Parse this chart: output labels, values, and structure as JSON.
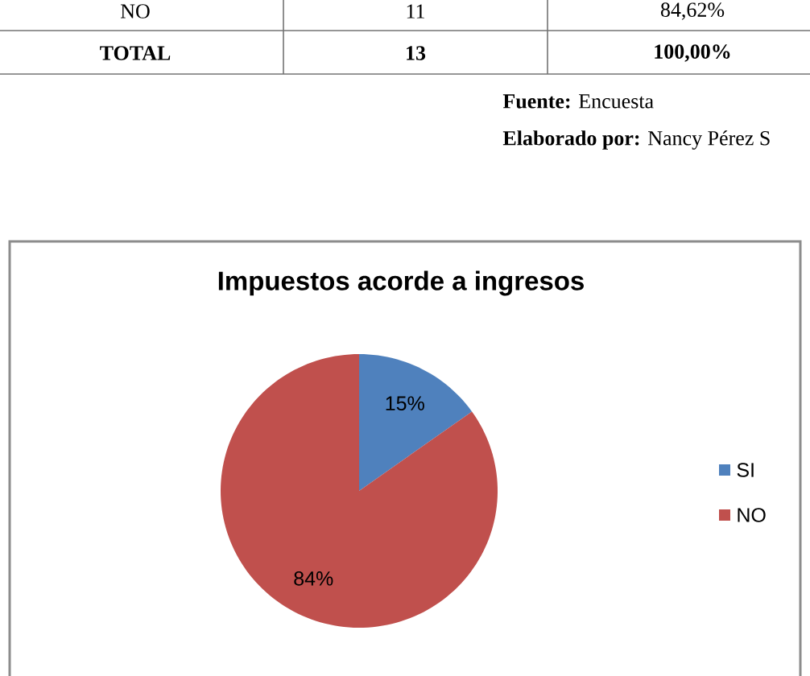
{
  "chart_data": {
    "type": "pie",
    "title": "Impuestos acorde a ingresos",
    "categories": [
      "SI",
      "NO"
    ],
    "values": [
      15,
      84
    ],
    "value_labels": [
      "15%",
      "84%"
    ],
    "colors": [
      "#4f81bd",
      "#c0504d"
    ],
    "legend": "right",
    "annotations": [
      "NO",
      "11",
      "84,62%",
      "TOTAL",
      "13",
      "100,00%",
      "**Fuente:** Encuesta",
      "**Elaborado por:** Nancy Pérez S"
    ]
  }
}
